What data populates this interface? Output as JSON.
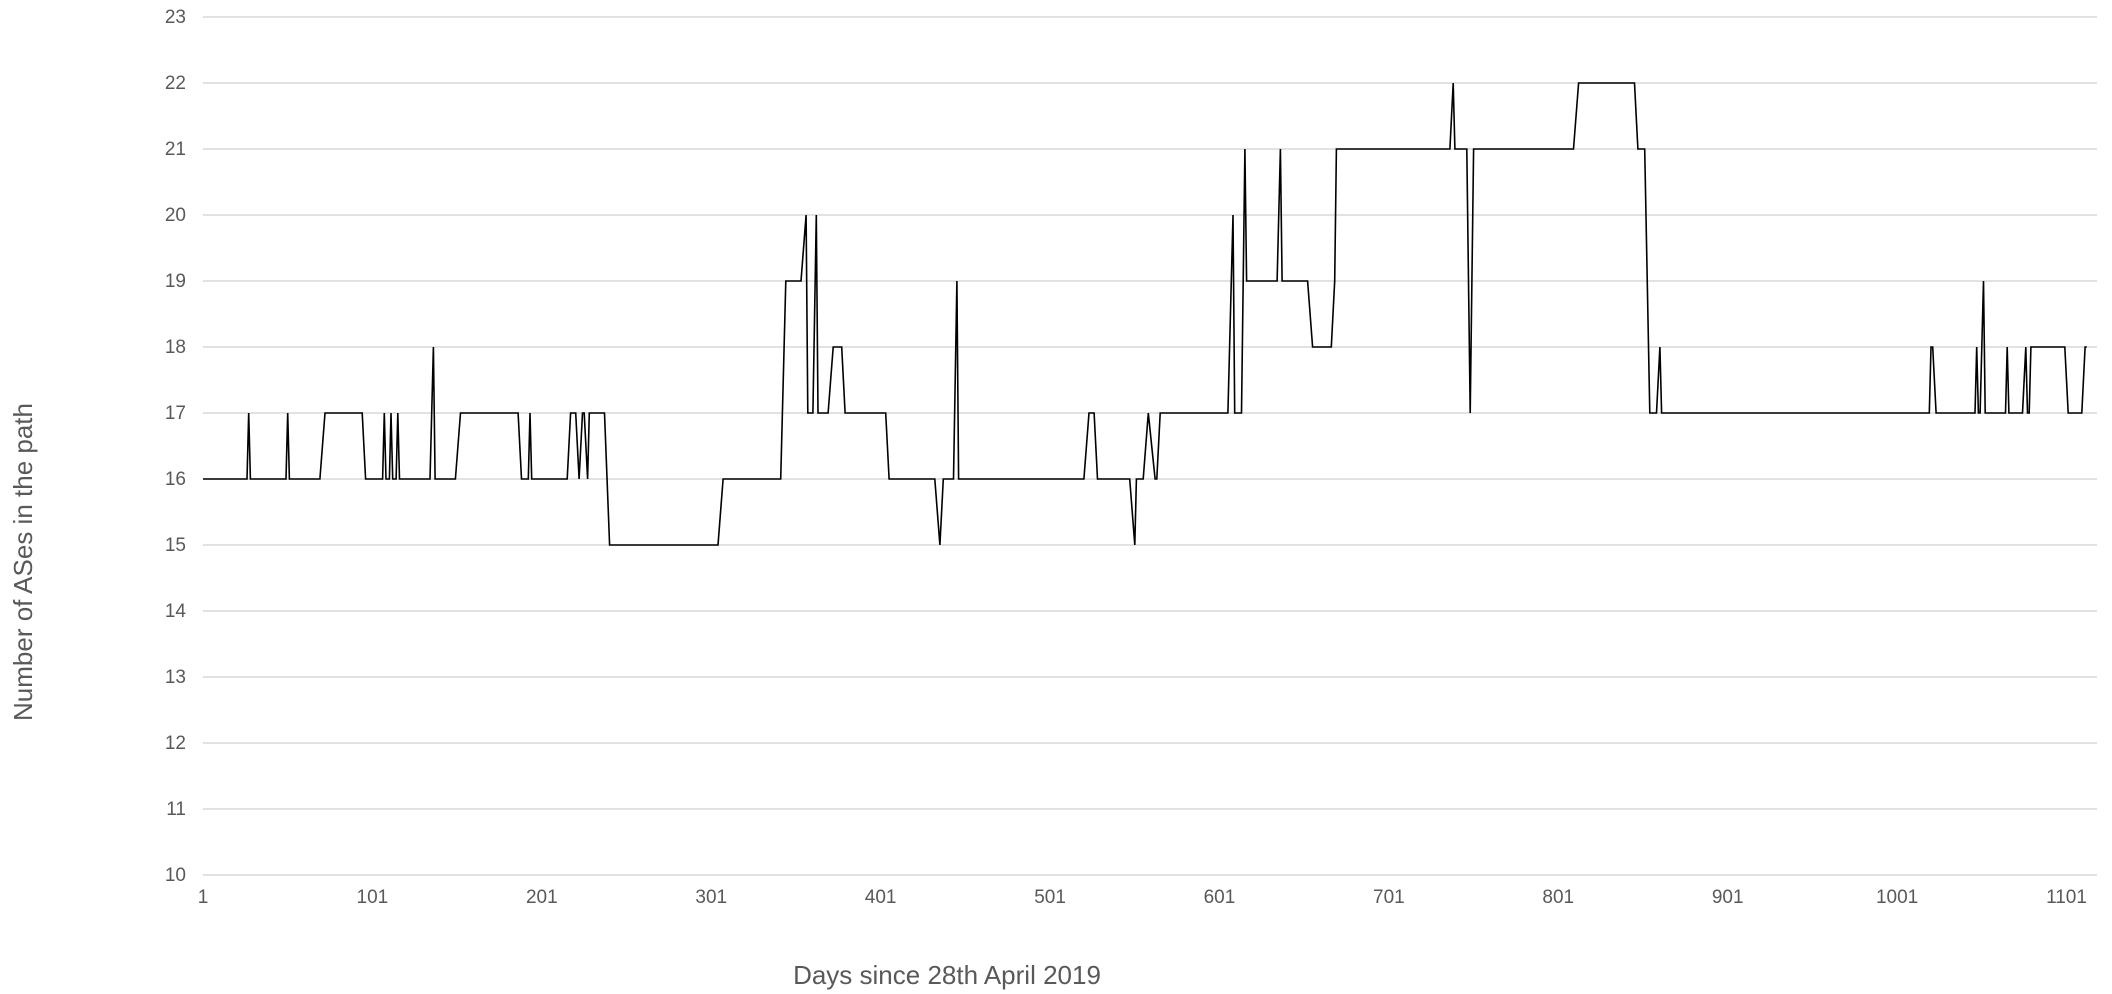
{
  "chart_data": {
    "type": "line",
    "title": "",
    "xlabel": "Days since 28th April 2019",
    "ylabel": "Number of ASes in the path",
    "xlim": [
      1,
      1119
    ],
    "ylim": [
      10,
      23
    ],
    "x_ticks": [
      1,
      101,
      201,
      301,
      401,
      501,
      601,
      701,
      801,
      901,
      1001,
      1101
    ],
    "y_ticks": [
      10,
      11,
      12,
      13,
      14,
      15,
      16,
      17,
      18,
      19,
      20,
      21,
      22,
      23
    ],
    "grid": "horizontal",
    "legend": "none",
    "series": [
      {
        "color": "#000000",
        "points": [
          [
            1,
            16
          ],
          [
            27,
            16
          ],
          [
            28,
            17
          ],
          [
            29,
            16
          ],
          [
            50,
            16
          ],
          [
            51,
            17
          ],
          [
            52,
            16
          ],
          [
            70,
            16
          ],
          [
            73,
            17
          ],
          [
            95,
            17
          ],
          [
            97,
            16
          ],
          [
            107,
            16
          ],
          [
            108,
            17
          ],
          [
            109,
            16
          ],
          [
            111,
            16
          ],
          [
            112,
            17
          ],
          [
            113,
            16
          ],
          [
            115,
            16
          ],
          [
            116,
            17
          ],
          [
            117,
            16
          ],
          [
            135,
            16
          ],
          [
            137,
            18
          ],
          [
            138,
            16
          ],
          [
            150,
            16
          ],
          [
            153,
            17
          ],
          [
            187,
            17
          ],
          [
            189,
            16
          ],
          [
            193,
            16
          ],
          [
            194,
            17
          ],
          [
            195,
            16
          ],
          [
            216,
            16
          ],
          [
            218,
            17
          ],
          [
            221,
            17
          ],
          [
            223,
            16
          ],
          [
            225,
            17
          ],
          [
            226,
            17
          ],
          [
            228,
            16
          ],
          [
            229,
            17
          ],
          [
            238,
            17
          ],
          [
            241,
            15
          ],
          [
            305,
            15
          ],
          [
            308,
            16
          ],
          [
            342,
            16
          ],
          [
            345,
            19
          ],
          [
            354,
            19
          ],
          [
            357,
            20
          ],
          [
            358,
            17
          ],
          [
            361,
            17
          ],
          [
            363,
            20
          ],
          [
            364,
            17
          ],
          [
            370,
            17
          ],
          [
            373,
            18
          ],
          [
            378,
            18
          ],
          [
            380,
            17
          ],
          [
            404,
            17
          ],
          [
            406,
            16
          ],
          [
            433,
            16
          ],
          [
            436,
            15
          ],
          [
            438,
            16
          ],
          [
            444,
            16
          ],
          [
            446,
            19
          ],
          [
            447,
            16
          ],
          [
            521,
            16
          ],
          [
            524,
            17
          ],
          [
            527,
            17
          ],
          [
            529,
            16
          ],
          [
            548,
            16
          ],
          [
            551,
            15
          ],
          [
            552,
            16
          ],
          [
            556,
            16
          ],
          [
            559,
            17
          ],
          [
            563,
            16
          ],
          [
            564,
            16
          ],
          [
            566,
            17
          ],
          [
            606,
            17
          ],
          [
            609,
            20
          ],
          [
            610,
            17
          ],
          [
            614,
            17
          ],
          [
            616,
            21
          ],
          [
            617,
            19
          ],
          [
            635,
            19
          ],
          [
            637,
            21
          ],
          [
            638,
            19
          ],
          [
            653,
            19
          ],
          [
            656,
            18
          ],
          [
            667,
            18
          ],
          [
            669,
            19
          ],
          [
            670,
            21
          ],
          [
            737,
            21
          ],
          [
            739,
            22
          ],
          [
            740,
            21
          ],
          [
            747,
            21
          ],
          [
            749,
            17
          ],
          [
            751,
            21
          ],
          [
            810,
            21
          ],
          [
            813,
            22
          ],
          [
            846,
            22
          ],
          [
            848,
            21
          ],
          [
            852,
            21
          ],
          [
            855,
            17
          ],
          [
            859,
            17
          ],
          [
            861,
            18
          ],
          [
            862,
            17
          ],
          [
            1020,
            17
          ],
          [
            1021,
            18
          ],
          [
            1022,
            18
          ],
          [
            1024,
            17
          ],
          [
            1047,
            17
          ],
          [
            1048,
            18
          ],
          [
            1049,
            17
          ],
          [
            1050,
            17
          ],
          [
            1052,
            19
          ],
          [
            1053,
            17
          ],
          [
            1065,
            17
          ],
          [
            1066,
            18
          ],
          [
            1067,
            17
          ],
          [
            1075,
            17
          ],
          [
            1077,
            18
          ],
          [
            1078,
            17
          ],
          [
            1079,
            17
          ],
          [
            1080,
            18
          ],
          [
            1100,
            18
          ],
          [
            1102,
            17
          ],
          [
            1110,
            17
          ],
          [
            1112,
            18
          ],
          [
            1113,
            18
          ]
        ]
      }
    ]
  }
}
